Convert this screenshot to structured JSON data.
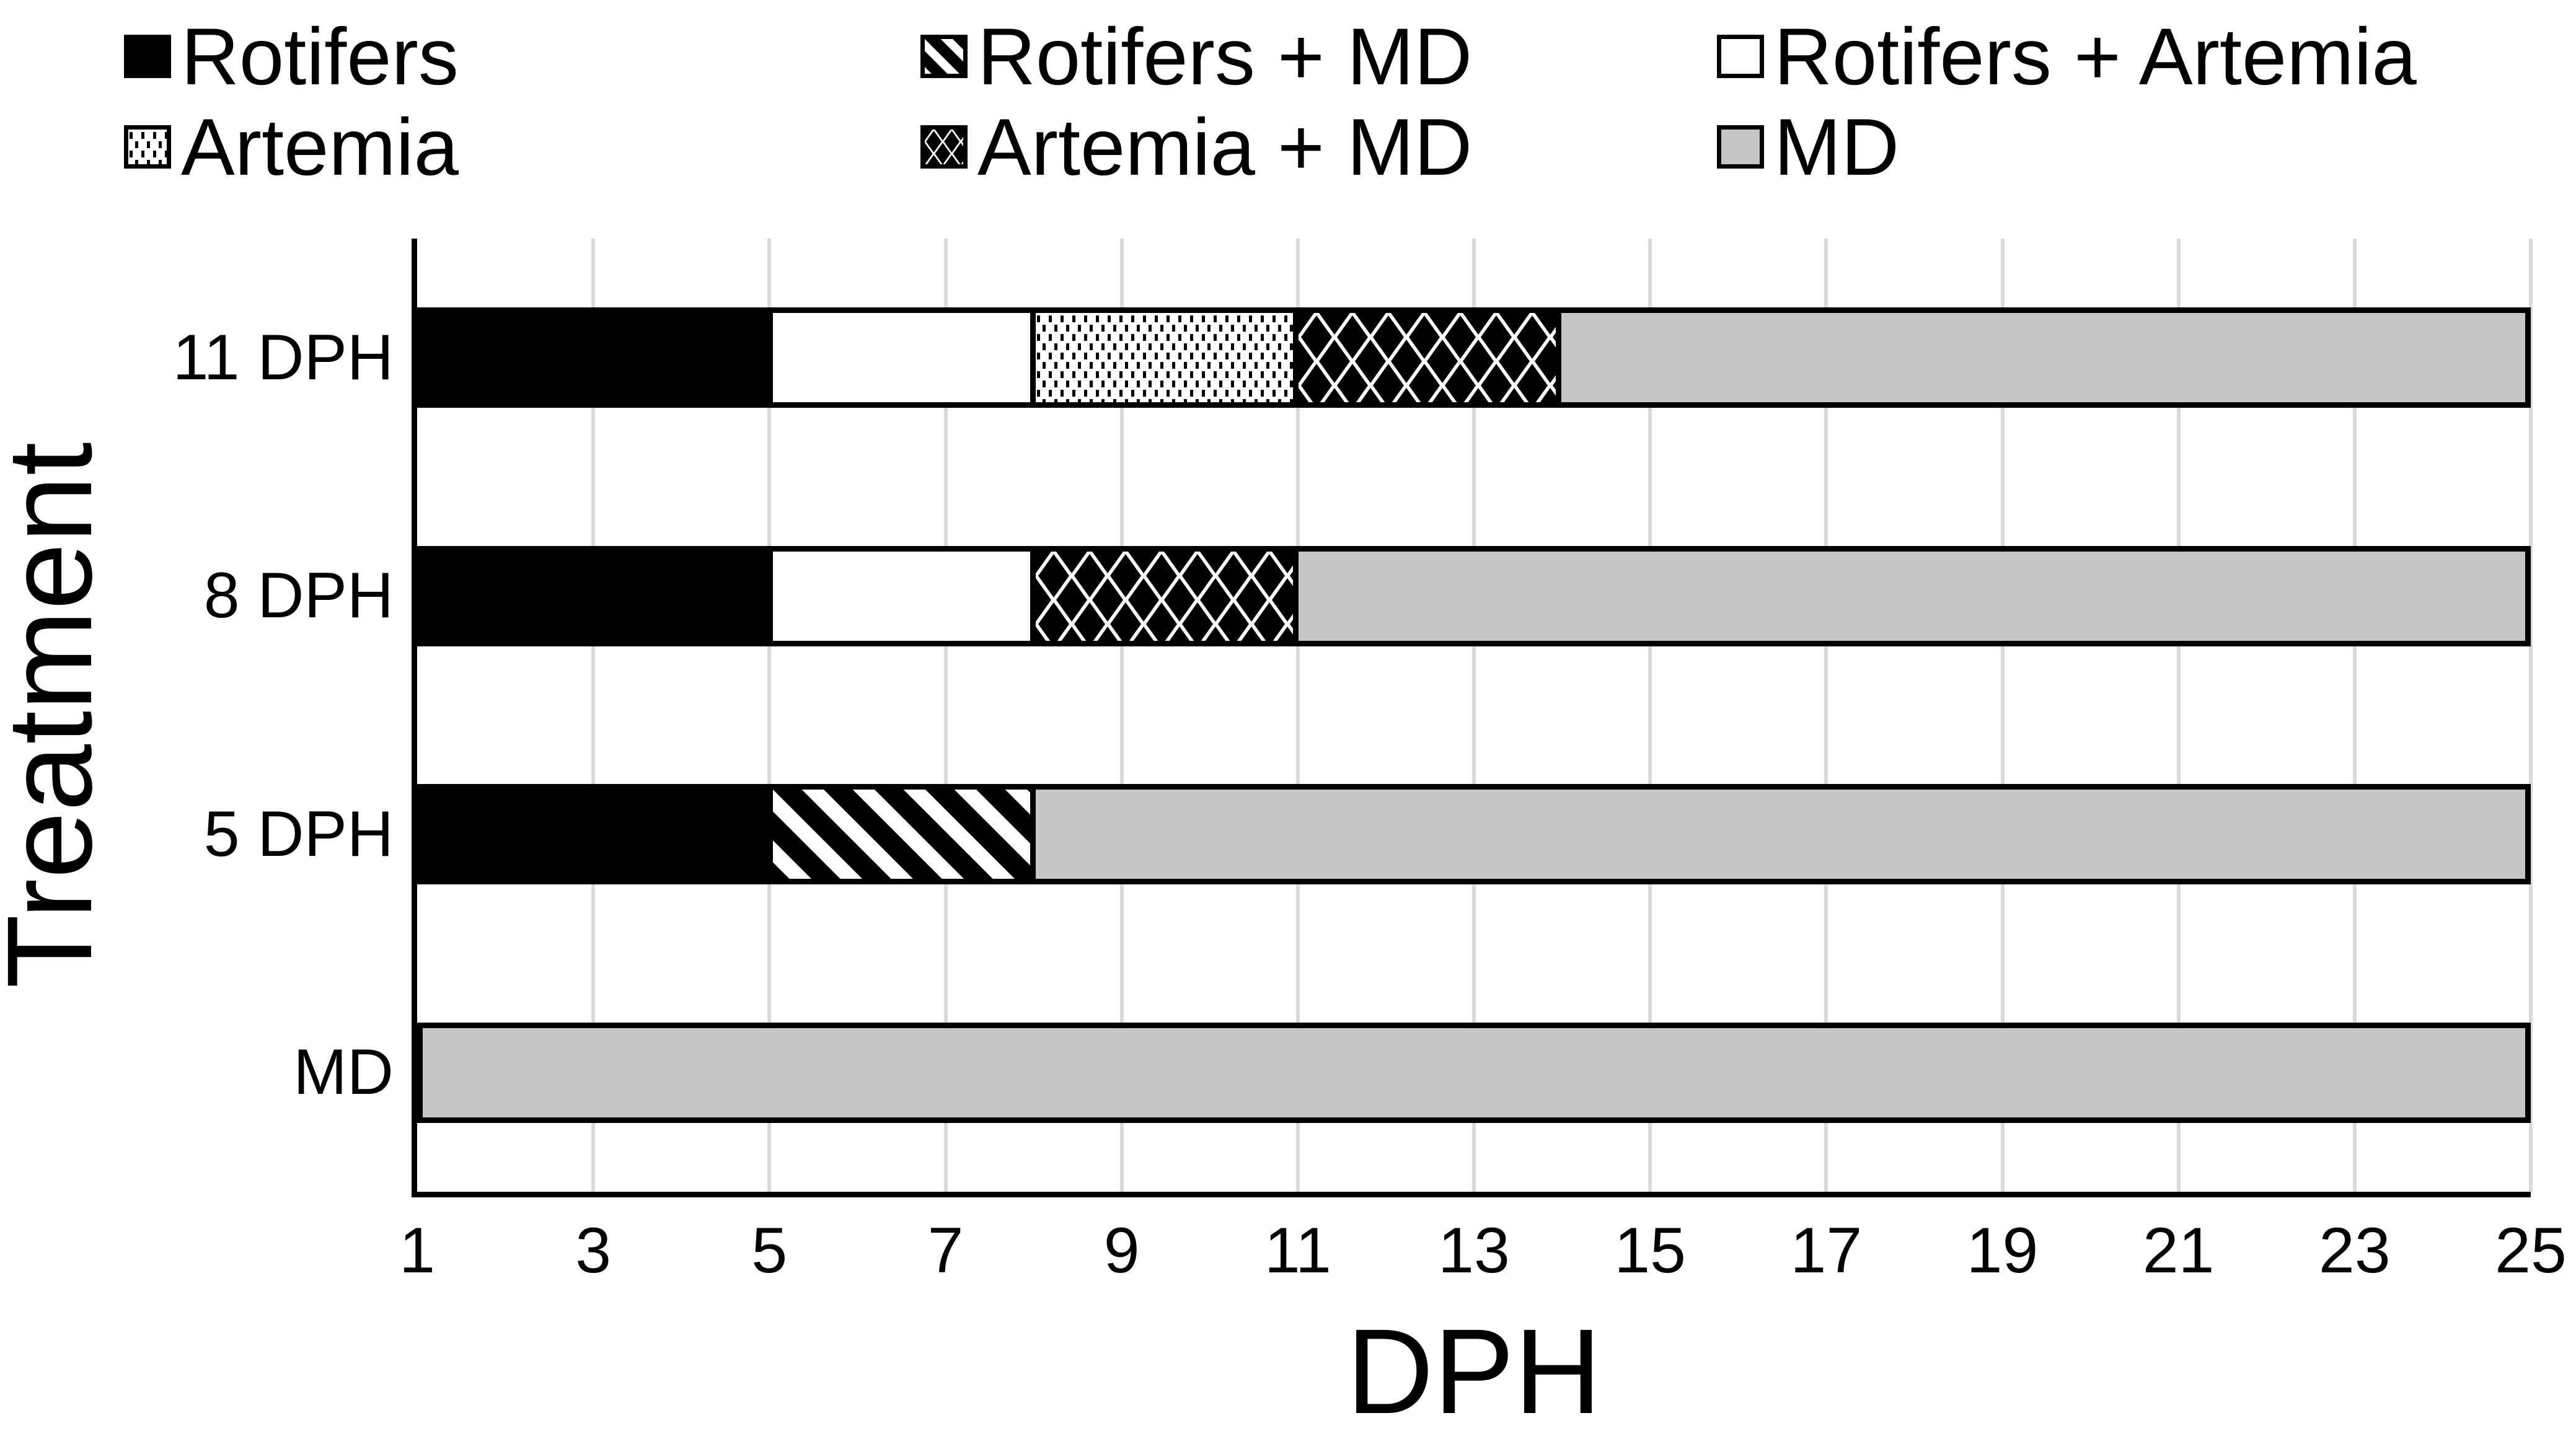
{
  "legend": {
    "items": [
      {
        "label": "Rotifers",
        "pattern": "solid-black"
      },
      {
        "label": "Rotifers + MD",
        "pattern": "diagonal"
      },
      {
        "label": "Rotifers + Artemia",
        "pattern": "white"
      },
      {
        "label": "Artemia",
        "pattern": "dots"
      },
      {
        "label": "Artemia + MD",
        "pattern": "diamonds"
      },
      {
        "label": "MD",
        "pattern": "gray"
      }
    ]
  },
  "chart_data": {
    "type": "bar",
    "orientation": "horizontal",
    "stacked": true,
    "title": "",
    "xlabel": "DPH",
    "ylabel": "Treatment",
    "xlim": [
      1,
      25
    ],
    "xticks": [
      1,
      3,
      5,
      7,
      9,
      11,
      13,
      15,
      17,
      19,
      21,
      23,
      25
    ],
    "grid": "vertical",
    "legend_position": "top",
    "categories": [
      "11 DPH",
      "8 DPH",
      "5 DPH",
      "MD"
    ],
    "rows": [
      {
        "category": "11 DPH",
        "segments": [
          {
            "feed": "Rotifers",
            "from": 1,
            "to": 5
          },
          {
            "feed": "Rotifers + Artemia",
            "from": 5,
            "to": 8
          },
          {
            "feed": "Artemia",
            "from": 8,
            "to": 11
          },
          {
            "feed": "Artemia + MD",
            "from": 11,
            "to": 14
          },
          {
            "feed": "MD",
            "from": 14,
            "to": 25
          }
        ]
      },
      {
        "category": "8 DPH",
        "segments": [
          {
            "feed": "Rotifers",
            "from": 1,
            "to": 5
          },
          {
            "feed": "Rotifers + Artemia",
            "from": 5,
            "to": 8
          },
          {
            "feed": "Artemia + MD",
            "from": 8,
            "to": 11
          },
          {
            "feed": "MD",
            "from": 11,
            "to": 25
          }
        ]
      },
      {
        "category": "5 DPH",
        "segments": [
          {
            "feed": "Rotifers",
            "from": 1,
            "to": 5
          },
          {
            "feed": "Rotifers + MD",
            "from": 5,
            "to": 8
          },
          {
            "feed": "MD",
            "from": 8,
            "to": 25
          }
        ]
      },
      {
        "category": "MD",
        "segments": [
          {
            "feed": "MD",
            "from": 1,
            "to": 25
          }
        ]
      }
    ],
    "pattern_map": {
      "Rotifers": "solid-black",
      "Rotifers + MD": "diagonal",
      "Rotifers + Artemia": "white",
      "Artemia": "dots",
      "Artemia + MD": "diamonds",
      "MD": "gray"
    }
  },
  "colors": {
    "black": "#000000",
    "white": "#FFFFFF",
    "gray": "#C5C5C5",
    "gridline": "#D9D9D9",
    "background": "#FFFFFF"
  }
}
